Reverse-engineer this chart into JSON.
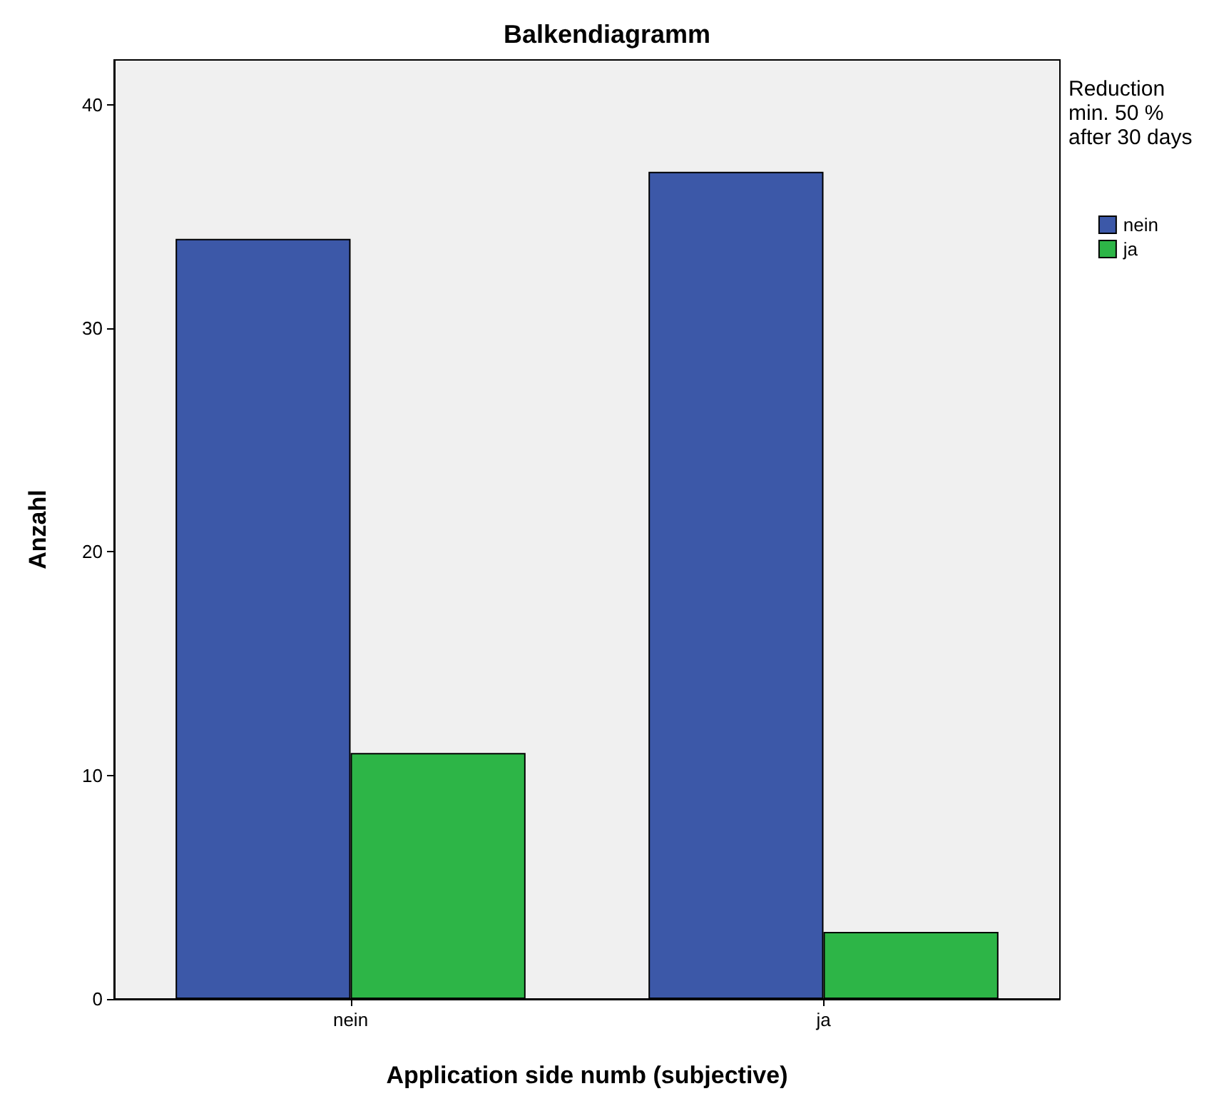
{
  "chart_data": {
    "type": "bar",
    "title": "Balkendiagramm",
    "xlabel": "Application side numb (subjective)",
    "ylabel": "Anzahl",
    "legend_title": "Reduction min. 50 % after 30 days",
    "categories": [
      "nein",
      "ja"
    ],
    "series": [
      {
        "name": "nein",
        "color": "#3c58a8",
        "values": [
          34,
          37
        ]
      },
      {
        "name": "ja",
        "color": "#2db547",
        "values": [
          11,
          3
        ]
      }
    ],
    "ylim": [
      0,
      42
    ],
    "yticks": [
      0,
      10,
      20,
      30,
      40
    ],
    "grid": false,
    "legend": "top right"
  }
}
